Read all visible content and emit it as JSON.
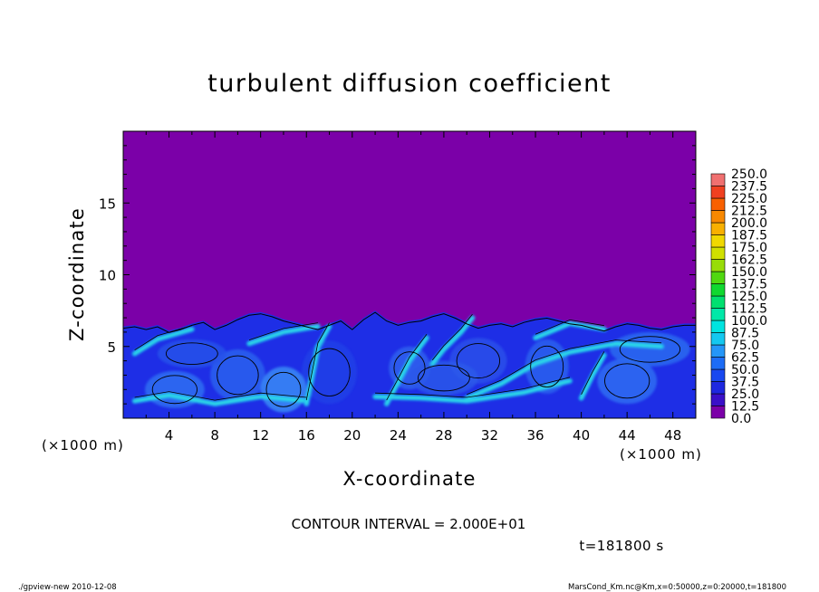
{
  "chart_data": {
    "type": "heatmap",
    "title": "turbulent diffusion coefficient",
    "xlabel": "X-coordinate",
    "ylabel": "Z-coordinate",
    "x_unit": "(×1000 m)",
    "y_unit": "(×1000 m)",
    "xlim": [
      0,
      50
    ],
    "ylim": [
      0,
      20
    ],
    "x_ticks": [
      4,
      8,
      12,
      16,
      20,
      24,
      28,
      32,
      36,
      40,
      44,
      48
    ],
    "y_ticks": [
      5,
      10,
      15
    ],
    "contour_interval_label": "CONTOUR INTERVAL = 2.000E+01",
    "time_label": "t=181800 s",
    "colorbar": {
      "levels": [
        "0.0",
        "12.5",
        "25.0",
        "37.5",
        "50.0",
        "62.5",
        "75.0",
        "87.5",
        "100.0",
        "112.5",
        "125.0",
        "137.5",
        "150.0",
        "162.5",
        "175.0",
        "187.5",
        "200.0",
        "212.5",
        "225.0",
        "237.5",
        "250.0"
      ],
      "colors": [
        "#7b00a8",
        "#3a10c8",
        "#1e28e0",
        "#1848f0",
        "#1c6cf6",
        "#2496f8",
        "#14c8f0",
        "#00e4e0",
        "#00e8a8",
        "#00e070",
        "#10d830",
        "#50d810",
        "#98dc08",
        "#d0e000",
        "#f0d800",
        "#f8b000",
        "#f88800",
        "#f86000",
        "#f04020",
        "#f07070"
      ]
    },
    "field": {
      "background_value": 0.0,
      "background_color": "#7b00a8",
      "boundary_layer_top_km": 7.5,
      "interface_z_km": [
        6.4,
        6.5,
        6.3,
        6.5,
        6.1,
        6.3,
        6.6,
        6.8,
        6.3,
        6.6,
        7.0,
        7.3,
        7.4,
        7.2,
        6.9,
        6.7,
        6.5,
        6.3,
        6.6,
        6.9,
        6.3,
        7.0,
        7.5,
        6.9,
        6.6,
        6.8,
        6.9,
        7.2,
        7.4,
        7.1,
        6.7,
        6.4,
        6.6,
        6.7,
        6.5,
        6.8,
        7.0,
        7.1,
        6.9,
        6.7,
        6.6,
        6.4,
        6.2,
        6.5,
        6.7,
        6.6,
        6.4,
        6.3,
        6.5,
        6.6,
        6.6
      ]
    }
  },
  "footer": {
    "left": "./gpview-new   2010-12-08",
    "right": "MarsCond_Km.nc@Km,x=0:50000,z=0:20000,t=181800"
  }
}
